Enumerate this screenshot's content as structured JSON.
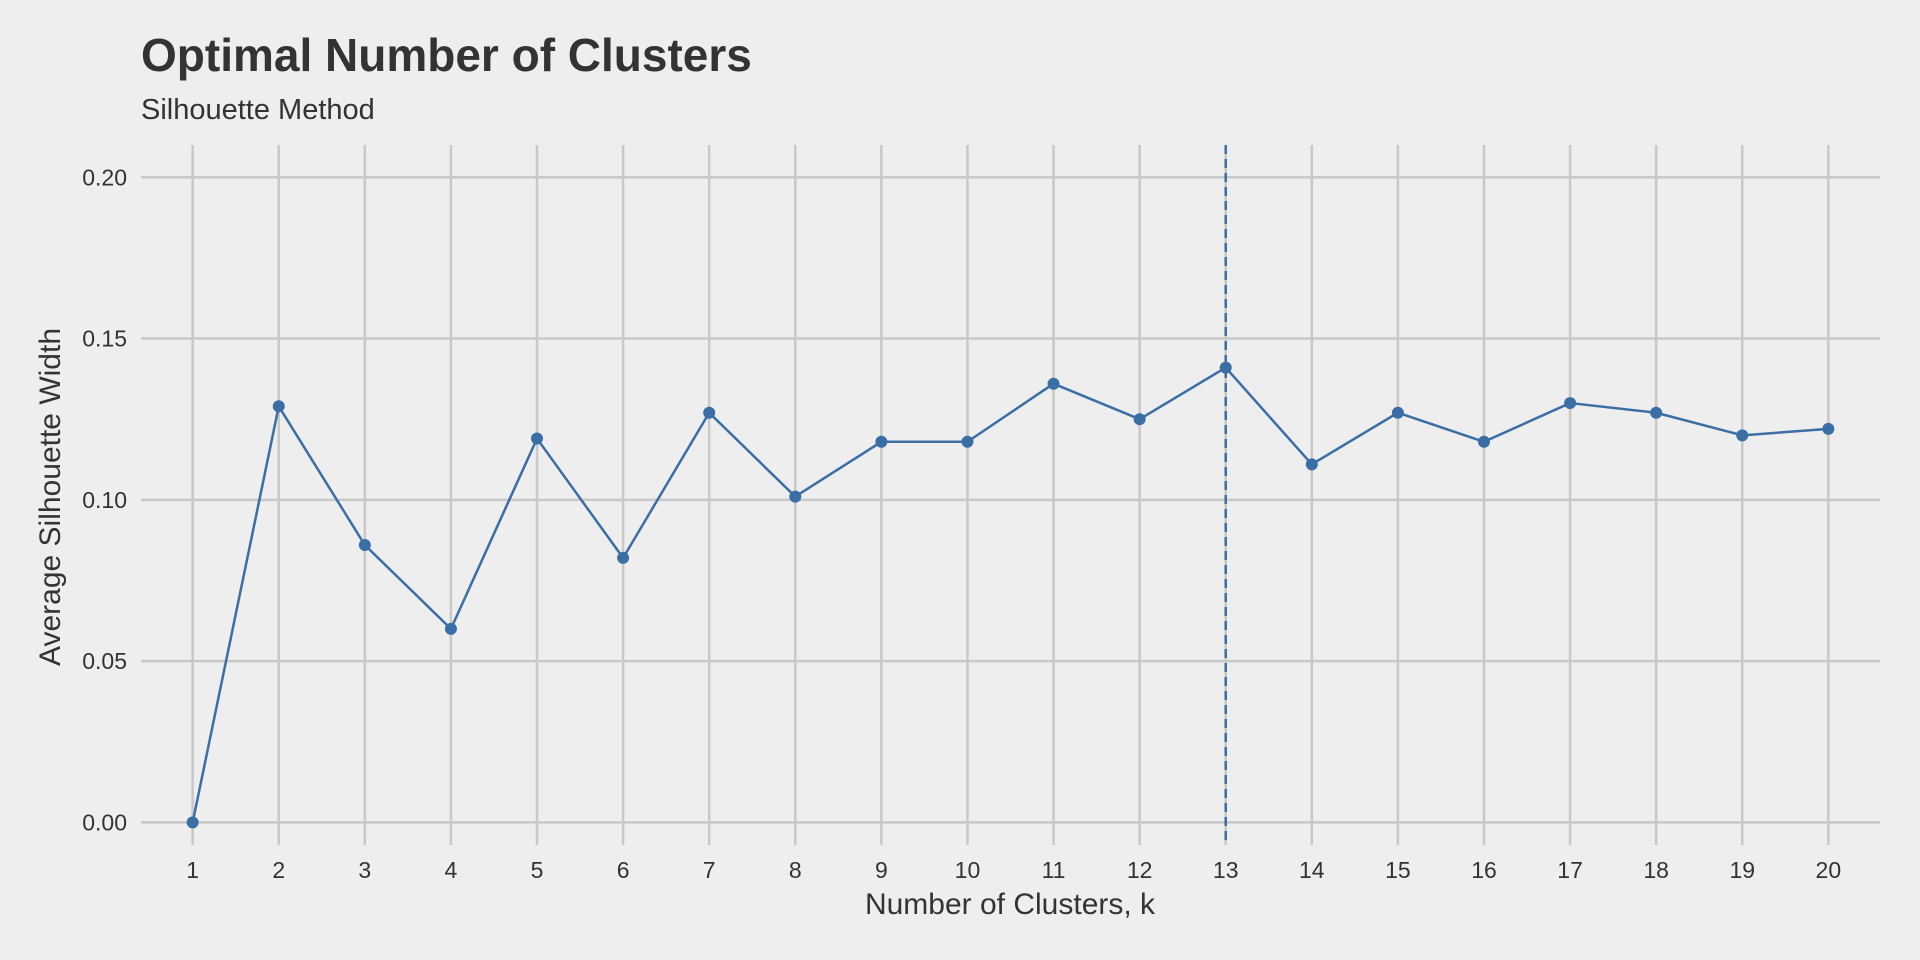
{
  "chart_data": {
    "type": "line",
    "title": "Optimal Number of Clusters",
    "subtitle": "Silhouette Method",
    "xlabel": "Number of Clusters, k",
    "ylabel": "Average Silhouette Width",
    "x": [
      1,
      2,
      3,
      4,
      5,
      6,
      7,
      8,
      9,
      10,
      11,
      12,
      13,
      14,
      15,
      16,
      17,
      18,
      19,
      20
    ],
    "values": [
      0.0,
      0.129,
      0.086,
      0.06,
      0.119,
      0.082,
      0.127,
      0.101,
      0.118,
      0.118,
      0.136,
      0.125,
      0.141,
      0.111,
      0.127,
      0.118,
      0.13,
      0.127,
      0.12,
      0.122
    ],
    "xlim": [
      0.4,
      20.6
    ],
    "ylim": [
      -0.007,
      0.21
    ],
    "yticks": [
      0.0,
      0.05,
      0.1,
      0.15,
      0.2
    ],
    "ytick_labels": [
      "0.00",
      "0.05",
      "0.10",
      "0.15",
      "0.20"
    ],
    "optimal_k": 13,
    "grid": true,
    "colors": {
      "line": "#3a6ea5",
      "reference_line": "#3a6ea5",
      "grid": "#c8c8c8",
      "background": "#eeeeee"
    }
  }
}
